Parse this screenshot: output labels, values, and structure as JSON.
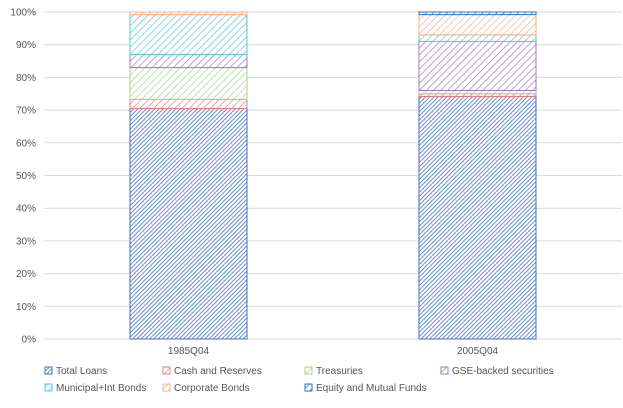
{
  "chart_data": {
    "type": "bar",
    "stacked": true,
    "percent_stacked": true,
    "categories": [
      "1985Q04",
      "2005Q04"
    ],
    "ylim": [
      0,
      100
    ],
    "yticks": [
      "0%",
      "10%",
      "20%",
      "30%",
      "40%",
      "50%",
      "60%",
      "70%",
      "80%",
      "90%",
      "100%"
    ],
    "grid": true,
    "legend_position": "bottom",
    "series": [
      {
        "name": "Total Loans",
        "values": [
          70.5,
          74.2
        ],
        "color": "#4472C4"
      },
      {
        "name": "Cash and Reserves",
        "values": [
          2.8,
          0.8
        ],
        "color": "#ED7D7D"
      },
      {
        "name": "Treasuries",
        "values": [
          9.7,
          1.0
        ],
        "color": "#A9D18E"
      },
      {
        "name": "GSE-backed securities",
        "values": [
          4.0,
          15.0
        ],
        "color": "#9E7CC1"
      },
      {
        "name": "Municipal+Int Bonds",
        "values": [
          12.2,
          2.0
        ],
        "color": "#5BC8D6"
      },
      {
        "name": "Corporate Bonds",
        "values": [
          0.8,
          6.2
        ],
        "color": "#F4B183"
      },
      {
        "name": "Equity and Mutual Funds",
        "values": [
          0.0,
          0.8
        ],
        "color": "#2E75B6"
      }
    ]
  }
}
